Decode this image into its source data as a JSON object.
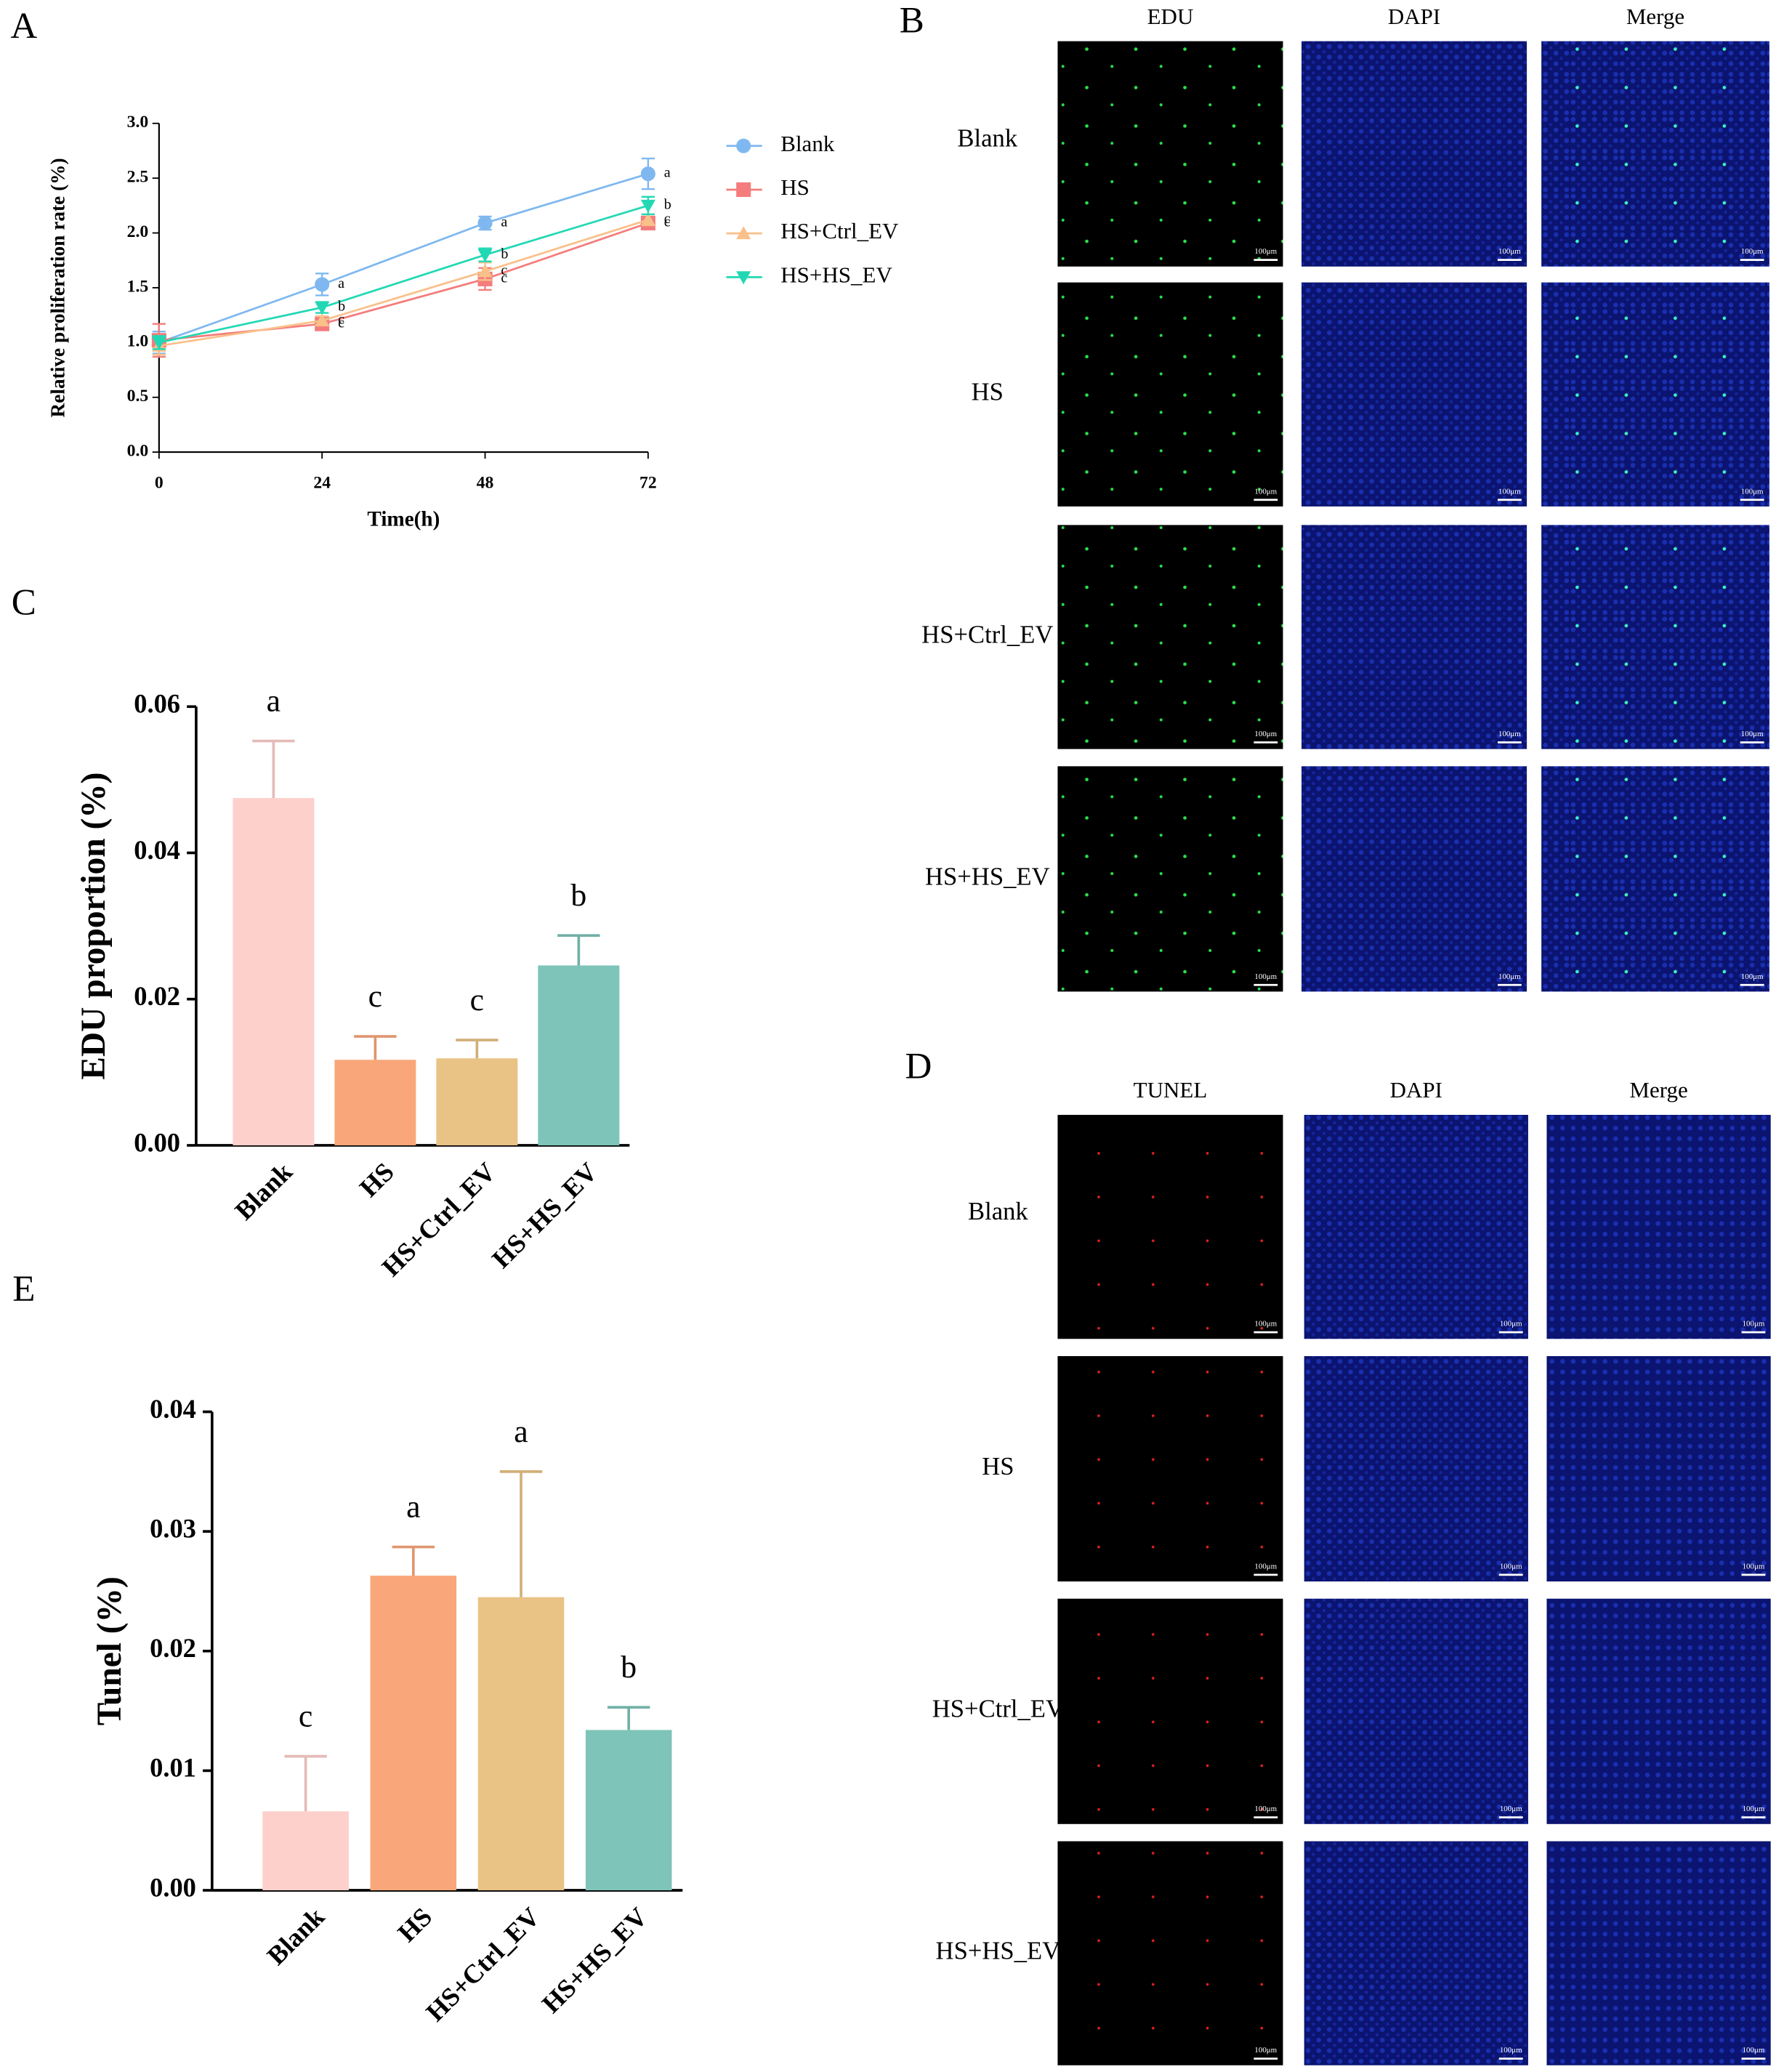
{
  "chart_data": [
    {
      "type": "line",
      "panel": "A",
      "xlabel": "Time(h)",
      "ylabel": "Relative proliferation rate (%)",
      "x": [
        0,
        24,
        48,
        72
      ],
      "xlim": [
        0,
        72
      ],
      "xticks": [
        0,
        24,
        48,
        72
      ],
      "ylim": [
        0,
        3
      ],
      "yticks": [
        {
          "value": 0,
          "label": "0.0"
        },
        0.5,
        {
          "value": 1,
          "label": "1.0"
        },
        1.5,
        {
          "value": 2,
          "label": "2.0"
        },
        2.5,
        {
          "value": 3,
          "label": "3.0"
        }
      ],
      "series": [
        {
          "name": "Blank",
          "color": "#7fb8f0",
          "marker": "circle",
          "values": [
            1.0,
            1.53,
            2.09,
            2.54
          ],
          "errors": [
            0.1,
            0.1,
            0.06,
            0.14
          ],
          "letters": [
            null,
            "a",
            "a",
            "a"
          ]
        },
        {
          "name": "HS",
          "color": "#f47c7c",
          "marker": "square",
          "values": [
            1.02,
            1.17,
            1.58,
            2.09
          ],
          "errors": [
            0.15,
            0.03,
            0.1,
            0.04
          ],
          "letters": [
            null,
            "c",
            "c",
            "c"
          ]
        },
        {
          "name": "HS+Ctrl_EV",
          "color": "#f9c08a",
          "marker": "triangle-up",
          "values": [
            0.97,
            1.2,
            1.65,
            2.12
          ],
          "errors": [
            0.08,
            0.04,
            0.08,
            0.05
          ],
          "letters": [
            null,
            "c",
            "c",
            "c"
          ]
        },
        {
          "name": "HS+HS_EV",
          "color": "#22d8b4",
          "marker": "triangle-down",
          "values": [
            1.0,
            1.32,
            1.8,
            2.25
          ],
          "errors": [
            0.06,
            0.05,
            0.06,
            0.08
          ],
          "letters": [
            null,
            "b",
            "b",
            "b"
          ]
        }
      ]
    },
    {
      "type": "bar",
      "panel": "C",
      "ylabel": "EDU proportion (%)",
      "categories": [
        "Blank",
        "HS",
        "HS+Ctrl_EV",
        "HS+HS_EV"
      ],
      "values": [
        0.0475,
        0.0117,
        0.0119,
        0.0246
      ],
      "errors": [
        0.0078,
        0.0032,
        0.0025,
        0.0041
      ],
      "letters": [
        "a",
        "c",
        "c",
        "b"
      ],
      "colors": [
        "#fdd0cc",
        "#f9a77a",
        "#e9c285",
        "#7ec4b8"
      ],
      "ylim": [
        0,
        0.06
      ],
      "yticks": [
        {
          "value": 0,
          "label": "0.00"
        },
        0.02,
        0.04,
        0.06
      ]
    },
    {
      "type": "bar",
      "panel": "E",
      "ylabel": "Tunel (%)",
      "categories": [
        "Blank",
        "HS",
        "HS+Ctrl_EV",
        "HS+HS_EV"
      ],
      "values": [
        0.0066,
        0.0263,
        0.0245,
        0.0134
      ],
      "errors": [
        0.0046,
        0.0024,
        0.0105,
        0.0019
      ],
      "letters": [
        "c",
        "a",
        "a",
        "b"
      ],
      "colors": [
        "#fdd0cc",
        "#f9a77a",
        "#e9c285",
        "#7ec4b8"
      ],
      "ylim": [
        0,
        0.04
      ],
      "yticks": [
        {
          "value": 0,
          "label": "0.00"
        },
        0.01,
        0.02,
        0.03,
        0.04
      ]
    }
  ],
  "image_panels": [
    {
      "panel": "B",
      "columns": [
        "EDU",
        "DAPI",
        "Merge"
      ],
      "rows": [
        "Blank",
        "HS",
        "HS+Ctrl_EV",
        "HS+HS_EV"
      ],
      "scale_bar": "100μm"
    },
    {
      "panel": "D",
      "columns": [
        "TUNEL",
        "DAPI",
        "Merge"
      ],
      "rows": [
        "Blank",
        "HS",
        "HS+Ctrl_EV",
        "HS+HS_EV"
      ],
      "scale_bar": "100μm"
    }
  ]
}
